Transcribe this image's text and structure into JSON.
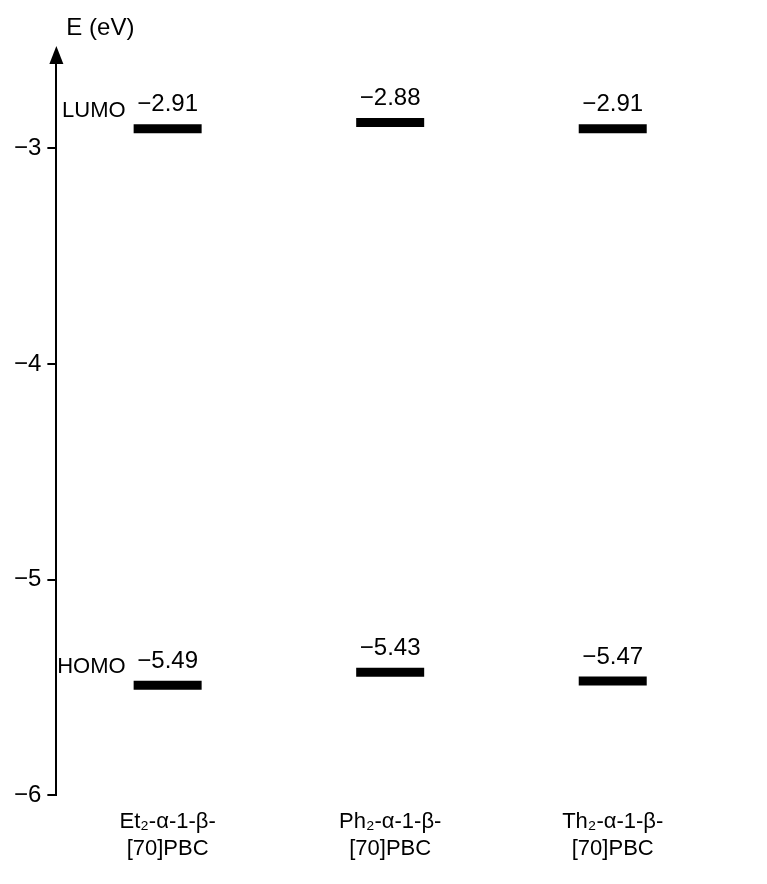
{
  "chart_data": {
    "type": "energy_level",
    "y_label": "E (eV)",
    "categories": [
      "Et₂-α-1-β-[70]PBC",
      "Ph₂-α-1-β-[70]PBC",
      "Th₂-α-1-β-[70]PBC"
    ],
    "series": [
      {
        "name": "LUMO",
        "color": "#000000",
        "values": [
          -2.91,
          -2.88,
          -2.91
        ],
        "value_labels": [
          "−2.91",
          "−2.88",
          "−2.91"
        ]
      },
      {
        "name": "HOMO",
        "color": "#000000",
        "values": [
          -5.49,
          -5.43,
          -5.47
        ],
        "value_labels": [
          "−5.49",
          "−5.43",
          "−5.47"
        ]
      }
    ],
    "ylim": [
      -6,
      -2.6
    ],
    "yticks": [
      {
        "value": -6,
        "label": "−6"
      },
      {
        "value": -5,
        "label": "−5"
      },
      {
        "value": -4,
        "label": "−4"
      },
      {
        "value": -3,
        "label": "−3"
      }
    ],
    "grid": false,
    "data_labels": true
  }
}
